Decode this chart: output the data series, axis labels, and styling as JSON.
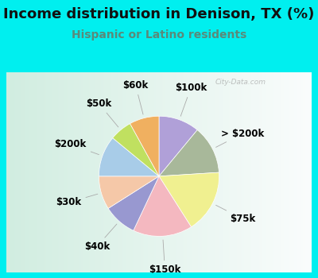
{
  "title": "Income distribution in Denison, TX (%)",
  "subtitle": "Hispanic or Latino residents",
  "outer_bg_color": "#00EFEF",
  "chart_bg_color": "#d8ede4",
  "watermark": "City-Data.com",
  "slices": [
    {
      "label": "$100k",
      "value": 11,
      "color": "#b0a0d8"
    },
    {
      "label": "> $200k",
      "value": 13,
      "color": "#a8b89a"
    },
    {
      "label": "$75k",
      "value": 17,
      "color": "#f0f090"
    },
    {
      "label": "$150k",
      "value": 16,
      "color": "#f4b8c0"
    },
    {
      "label": "$40k",
      "value": 9,
      "color": "#9898d0"
    },
    {
      "label": "$30k",
      "value": 9,
      "color": "#f5c8a8"
    },
    {
      "label": "$200k",
      "value": 11,
      "color": "#a8cce8"
    },
    {
      "label": "$50k",
      "value": 6,
      "color": "#c0e060"
    },
    {
      "label": "$60k",
      "value": 8,
      "color": "#f0b060"
    }
  ],
  "label_fontsize": 8.5,
  "title_fontsize": 13,
  "subtitle_fontsize": 10,
  "title_color": "#111111",
  "subtitle_color": "#5a8a7a"
}
